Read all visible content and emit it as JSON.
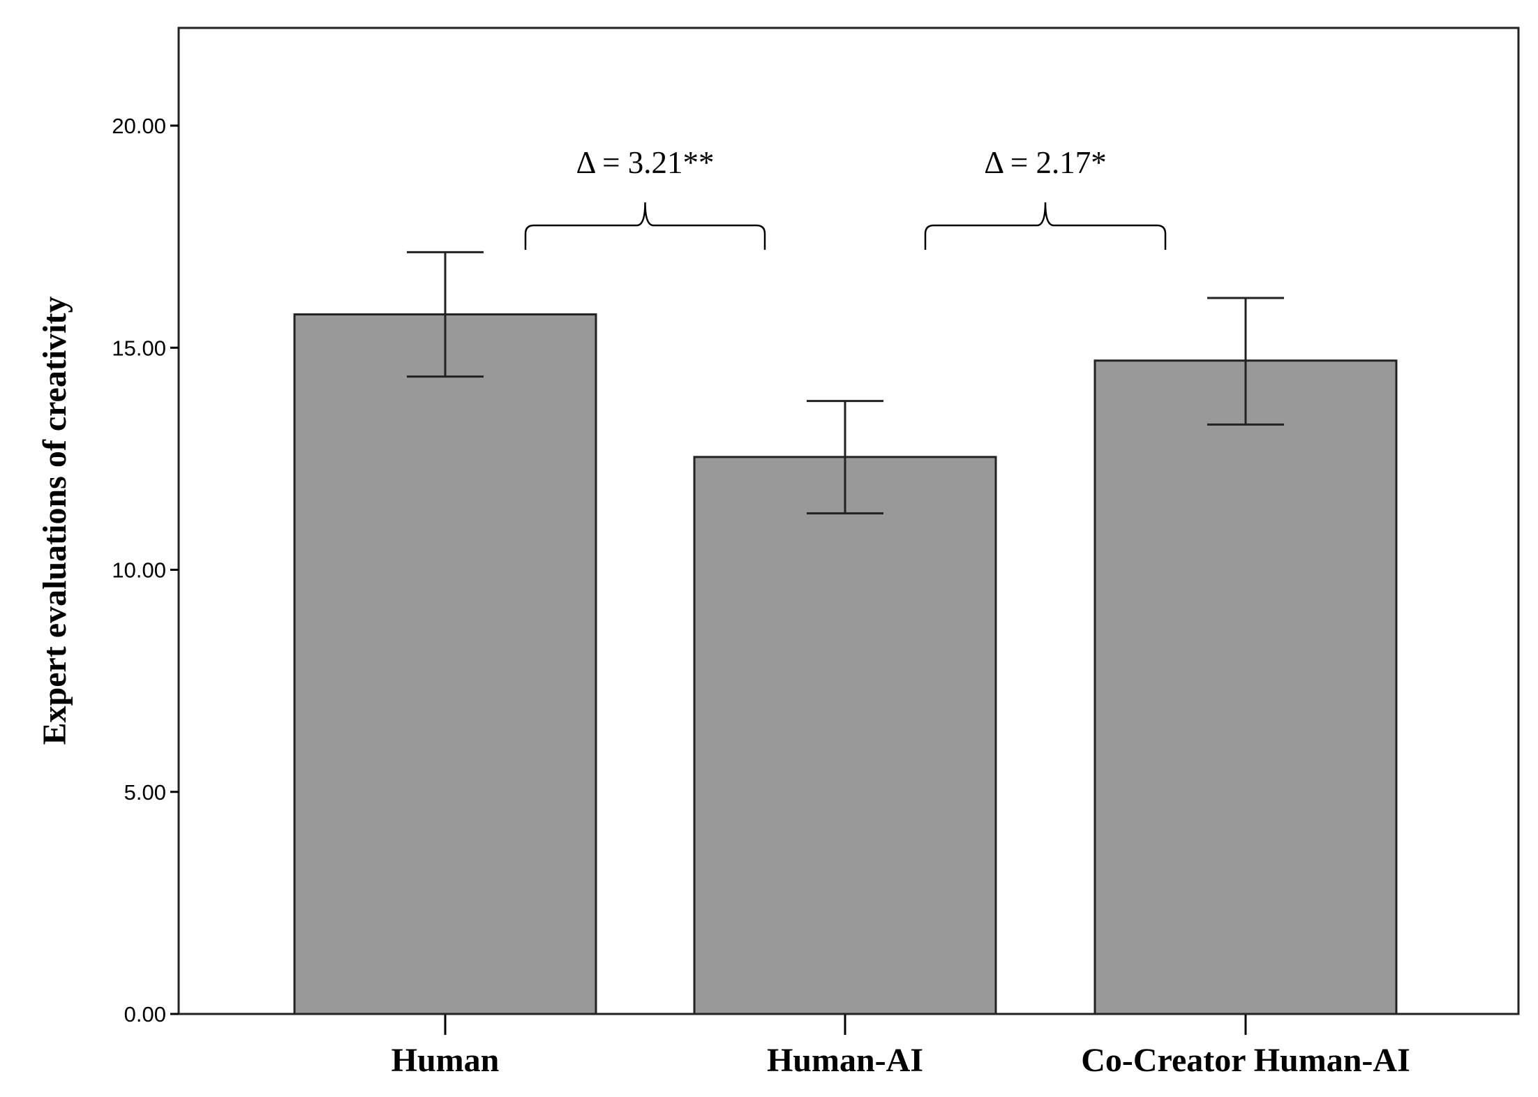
{
  "chart_data": {
    "type": "bar",
    "title": "",
    "xlabel": "",
    "ylabel": "Expert evaluations of creativity",
    "categories": [
      "Human",
      "Human-AI",
      "Co-Creator Human-AI"
    ],
    "values": [
      15.75,
      12.54,
      14.71
    ],
    "error_bars": [
      {
        "lower": 14.35,
        "upper": 17.15
      },
      {
        "lower": 11.27,
        "upper": 13.8
      },
      {
        "lower": 13.27,
        "upper": 16.12
      }
    ],
    "ylim": [
      0,
      22.2
    ],
    "yticks": [
      0,
      5,
      10,
      15,
      20
    ],
    "ytick_labels": [
      "0.00",
      "5.00",
      "10.00",
      "15.00",
      "20.00"
    ],
    "grid": false,
    "legend": "none",
    "colors": {
      "bar_fill": "#999999",
      "bar_stroke": "#222222",
      "axis": "#000000"
    },
    "annotations": [
      {
        "text": "Δ = 3.21**",
        "from": "Human",
        "to": "Human-AI"
      },
      {
        "text": "Δ = 2.17*",
        "from": "Human-AI",
        "to": "Co-Creator Human-AI"
      }
    ]
  }
}
